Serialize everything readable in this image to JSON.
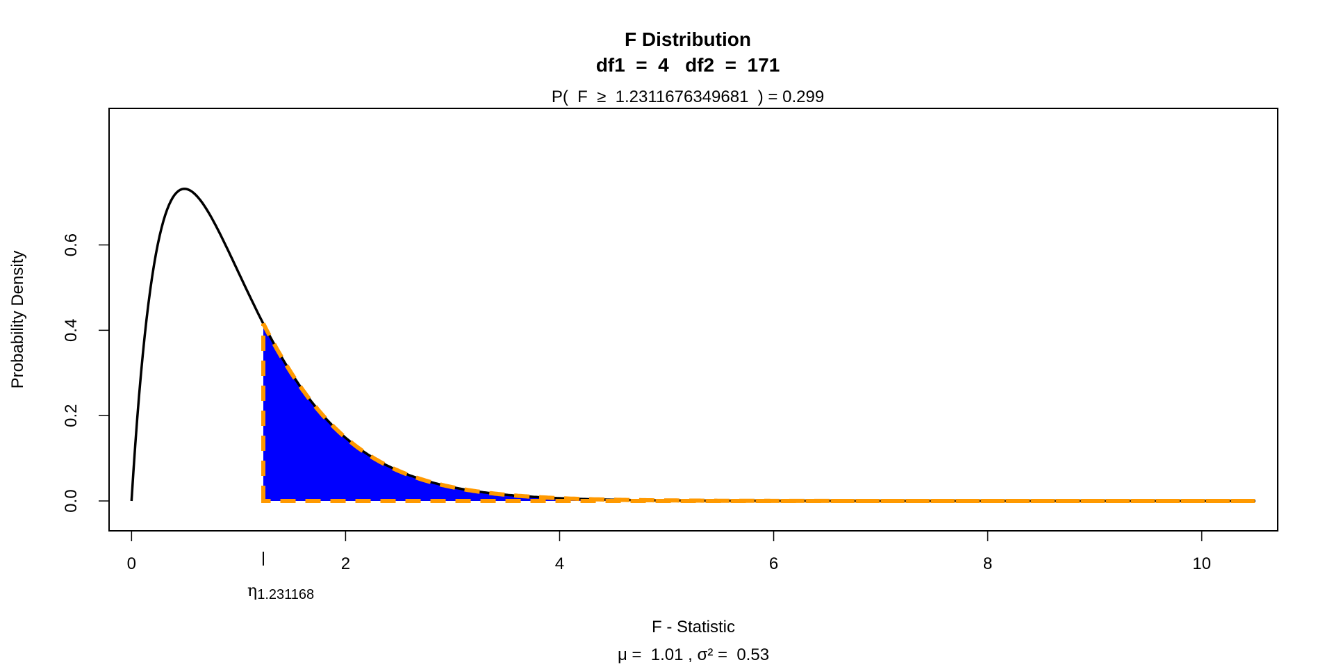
{
  "chart_data": {
    "type": "area",
    "title": "F Distribution",
    "subtitle": "df1  =  4   df2  =  171",
    "probability_label": "P(  F  ≥  1.2311676349681  ) = 0.299",
    "xlabel": "F - Statistic",
    "xlabel_sub": "μ =  1.01 , σ² =  0.53",
    "ylabel": "Probability Density",
    "df1": 4,
    "df2": 171,
    "f_value": 1.2311676349681,
    "p_value": 0.299,
    "xlim": [
      -0.21,
      10.71
    ],
    "ylim": [
      -0.07,
      0.92
    ],
    "x_range": [
      0,
      10.5
    ],
    "x_ticks": [
      0,
      2,
      4,
      6,
      8,
      10
    ],
    "x_tick_labels": [
      "0",
      "2",
      "4",
      "6",
      "8",
      "10"
    ],
    "y_ticks": [
      0.0,
      0.2,
      0.4,
      0.6
    ],
    "y_tick_labels": [
      "0.0",
      "0.2",
      "0.4",
      "0.6"
    ],
    "marker_symbol": "η",
    "marker_label": "1.231168",
    "colors": {
      "curve": "#000000",
      "fill": "#0000ff",
      "outline": "#ff9900"
    }
  }
}
